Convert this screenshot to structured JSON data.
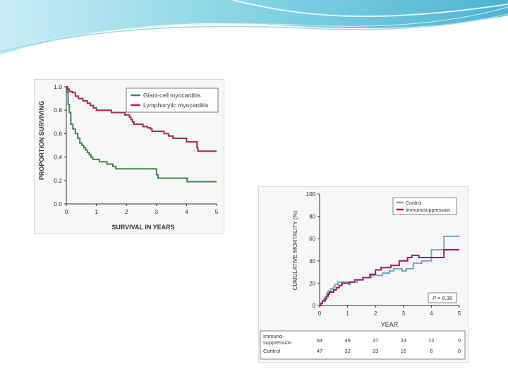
{
  "chart_data": [
    {
      "type": "line",
      "xlabel": "SURVIVAL IN YEARS",
      "ylabel": "PROPORTION SURVIVING",
      "xlim": [
        0,
        5
      ],
      "ylim": [
        0,
        1
      ],
      "x_ticks": [
        "0",
        "1",
        "2",
        "3",
        "4",
        "5"
      ],
      "y_ticks": [
        "0.0",
        "0.2",
        "0.4",
        "0.6",
        "0.8",
        "1.0"
      ],
      "legend": "top-right",
      "series": [
        {
          "name": "Giant-cell myocarditis",
          "color": "#3b8a55",
          "points": [
            [
              0,
              1.0
            ],
            [
              0.04,
              0.95
            ],
            [
              0.06,
              0.85
            ],
            [
              0.1,
              0.78
            ],
            [
              0.15,
              0.68
            ],
            [
              0.22,
              0.64
            ],
            [
              0.3,
              0.6
            ],
            [
              0.38,
              0.56
            ],
            [
              0.45,
              0.52
            ],
            [
              0.52,
              0.5
            ],
            [
              0.58,
              0.48
            ],
            [
              0.64,
              0.46
            ],
            [
              0.7,
              0.44
            ],
            [
              0.76,
              0.42
            ],
            [
              0.82,
              0.4
            ],
            [
              0.88,
              0.38
            ],
            [
              1.05,
              0.38
            ],
            [
              1.1,
              0.36
            ],
            [
              1.3,
              0.36
            ],
            [
              1.35,
              0.34
            ],
            [
              1.5,
              0.34
            ],
            [
              1.55,
              0.32
            ],
            [
              1.6,
              0.32
            ],
            [
              1.65,
              0.3
            ],
            [
              2.95,
              0.3
            ],
            [
              3.0,
              0.25
            ],
            [
              3.05,
              0.22
            ],
            [
              4.0,
              0.22
            ],
            [
              4.02,
              0.19
            ],
            [
              5.0,
              0.19
            ]
          ]
        },
        {
          "name": "Lymphocytic myocarditis",
          "color": "#a82a52",
          "points": [
            [
              0,
              1.0
            ],
            [
              0.04,
              0.98
            ],
            [
              0.1,
              0.96
            ],
            [
              0.2,
              0.95
            ],
            [
              0.3,
              0.92
            ],
            [
              0.4,
              0.9
            ],
            [
              0.55,
              0.88
            ],
            [
              0.7,
              0.86
            ],
            [
              0.8,
              0.84
            ],
            [
              0.9,
              0.82
            ],
            [
              1.0,
              0.8
            ],
            [
              1.45,
              0.8
            ],
            [
              1.5,
              0.78
            ],
            [
              1.9,
              0.78
            ],
            [
              1.95,
              0.76
            ],
            [
              2.05,
              0.76
            ],
            [
              2.1,
              0.74
            ],
            [
              2.15,
              0.72
            ],
            [
              2.2,
              0.7
            ],
            [
              2.25,
              0.68
            ],
            [
              2.5,
              0.68
            ],
            [
              2.55,
              0.66
            ],
            [
              2.65,
              0.66
            ],
            [
              2.7,
              0.65
            ],
            [
              2.8,
              0.64
            ],
            [
              2.85,
              0.62
            ],
            [
              3.2,
              0.62
            ],
            [
              3.25,
              0.6
            ],
            [
              3.35,
              0.6
            ],
            [
              3.4,
              0.58
            ],
            [
              3.5,
              0.58
            ],
            [
              3.55,
              0.56
            ],
            [
              3.95,
              0.56
            ],
            [
              4.0,
              0.53
            ],
            [
              4.3,
              0.53
            ],
            [
              4.35,
              0.48
            ],
            [
              4.38,
              0.45
            ],
            [
              5.0,
              0.45
            ]
          ]
        }
      ]
    },
    {
      "type": "line",
      "xlabel": "YEAR",
      "ylabel": "CUMULATIVE MORTALITY (%)",
      "xlim": [
        0,
        5
      ],
      "ylim": [
        0,
        100
      ],
      "x_ticks": [
        "0",
        "1",
        "2",
        "3",
        "4",
        "5"
      ],
      "y_ticks": [
        "0",
        "20",
        "40",
        "60",
        "80",
        "100"
      ],
      "legend": "top-right",
      "annotation": "P = 0.36",
      "series": [
        {
          "name": "Control",
          "color": "#74a9c0",
          "points": [
            [
              0,
              0
            ],
            [
              0.05,
              2
            ],
            [
              0.1,
              4
            ],
            [
              0.15,
              6
            ],
            [
              0.2,
              8
            ],
            [
              0.25,
              11
            ],
            [
              0.3,
              13
            ],
            [
              0.4,
              15
            ],
            [
              0.5,
              17
            ],
            [
              0.55,
              19
            ],
            [
              0.65,
              21
            ],
            [
              1.0,
              21
            ],
            [
              1.05,
              19
            ],
            [
              1.1,
              21
            ],
            [
              1.3,
              21
            ],
            [
              1.35,
              23
            ],
            [
              1.5,
              23
            ],
            [
              1.55,
              25
            ],
            [
              1.8,
              25
            ],
            [
              1.85,
              27
            ],
            [
              2.2,
              27
            ],
            [
              2.25,
              29
            ],
            [
              2.45,
              29
            ],
            [
              2.5,
              31
            ],
            [
              2.6,
              31
            ],
            [
              2.65,
              33
            ],
            [
              2.9,
              33
            ],
            [
              2.95,
              31
            ],
            [
              3.05,
              31
            ],
            [
              3.1,
              33
            ],
            [
              3.3,
              33
            ],
            [
              3.35,
              38
            ],
            [
              3.6,
              38
            ],
            [
              3.65,
              40
            ],
            [
              3.95,
              40
            ],
            [
              4.0,
              50
            ],
            [
              4.4,
              50
            ],
            [
              4.45,
              62
            ],
            [
              5.0,
              62
            ]
          ]
        },
        {
          "name": "Immunosuppression",
          "color": "#9c1f63",
          "points": [
            [
              0,
              0
            ],
            [
              0.05,
              2
            ],
            [
              0.1,
              4
            ],
            [
              0.2,
              6
            ],
            [
              0.25,
              8
            ],
            [
              0.3,
              10
            ],
            [
              0.35,
              12
            ],
            [
              0.45,
              12
            ],
            [
              0.5,
              14
            ],
            [
              0.6,
              16
            ],
            [
              0.7,
              18
            ],
            [
              0.8,
              20
            ],
            [
              1.0,
              20
            ],
            [
              1.05,
              21
            ],
            [
              1.2,
              21
            ],
            [
              1.25,
              23
            ],
            [
              1.5,
              23
            ],
            [
              1.55,
              25
            ],
            [
              1.75,
              25
            ],
            [
              1.8,
              28
            ],
            [
              1.95,
              28
            ],
            [
              2.0,
              32
            ],
            [
              2.15,
              32
            ],
            [
              2.2,
              34
            ],
            [
              2.5,
              34
            ],
            [
              2.55,
              36
            ],
            [
              2.8,
              36
            ],
            [
              2.85,
              40
            ],
            [
              3.1,
              40
            ],
            [
              3.15,
              43
            ],
            [
              3.25,
              43
            ],
            [
              3.3,
              45
            ],
            [
              3.5,
              45
            ],
            [
              3.55,
              43
            ],
            [
              4.4,
              43
            ],
            [
              4.45,
              50
            ],
            [
              5.0,
              50
            ]
          ]
        }
      ],
      "risk_table": {
        "rows": [
          {
            "label": [
              "Immuno-",
              "suppression"
            ],
            "values": [
              "64",
              "49",
              "37",
              "23",
              "12",
              "0"
            ]
          },
          {
            "label": [
              "Control"
            ],
            "values": [
              "47",
              "32",
              "23",
              "16",
              "6",
              "0"
            ]
          }
        ]
      }
    }
  ]
}
